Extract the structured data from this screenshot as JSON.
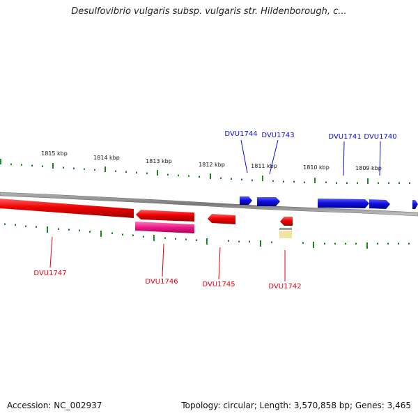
{
  "title": "Desulfovibrio vulgaris subsp. vulgaris str. Hildenborough, c...",
  "footer": {
    "accession": "Accession: NC_002937",
    "summary": "Topology: circular; Length: 3,570,858 bp; Genes: 3,465"
  },
  "scale_labels": [
    "1815 kbp",
    "1814 kbp",
    "1813 kbp",
    "1812 kbp",
    "1811 kbp",
    "1810 kbp",
    "1809 kbp"
  ],
  "genes_forward": [
    "DVU1744",
    "DVU1743",
    "DVU1741",
    "DVU1740"
  ],
  "genes_reverse": [
    "DVU1747",
    "DVU1746",
    "DVU1745",
    "DVU1742"
  ],
  "colors": {
    "forward_gene": "#0a0adf",
    "reverse_gene": "#e8000a",
    "rna_gene": "#e8197e",
    "other_feature": "#efe3a0",
    "tick": "#1a8a1a",
    "backbone": "#8a8a8a"
  }
}
